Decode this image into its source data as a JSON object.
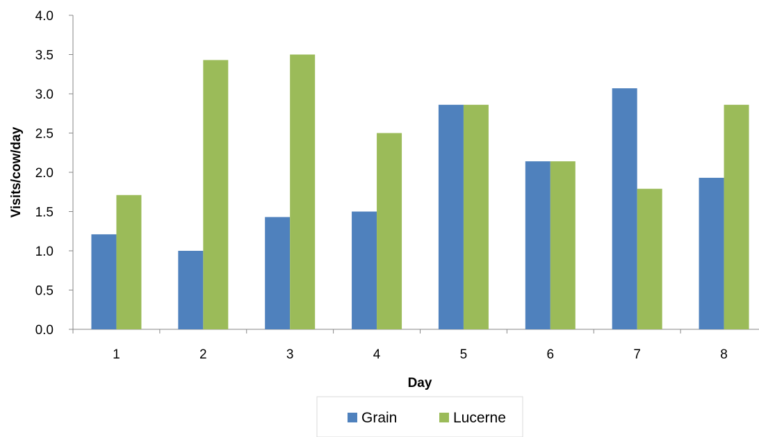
{
  "chart_data": {
    "type": "bar",
    "xlabel": "Day",
    "ylabel": "Visits/cow/day",
    "ylim": [
      0,
      4.0
    ],
    "yticks": [
      "0.0",
      "0.5",
      "1.0",
      "1.5",
      "2.0",
      "2.5",
      "3.0",
      "3.5",
      "4.0"
    ],
    "categories": [
      "1",
      "2",
      "3",
      "4",
      "5",
      "6",
      "7",
      "8"
    ],
    "series": [
      {
        "name": "Grain",
        "color": "#4f81bd",
        "values": [
          1.21,
          1.0,
          1.43,
          1.5,
          2.86,
          2.14,
          3.07,
          1.93
        ]
      },
      {
        "name": "Lucerne",
        "color": "#9bbb59",
        "values": [
          1.71,
          3.43,
          3.5,
          2.5,
          2.86,
          2.14,
          1.79,
          2.86
        ]
      }
    ],
    "grid": false,
    "legend_position": "bottom"
  }
}
